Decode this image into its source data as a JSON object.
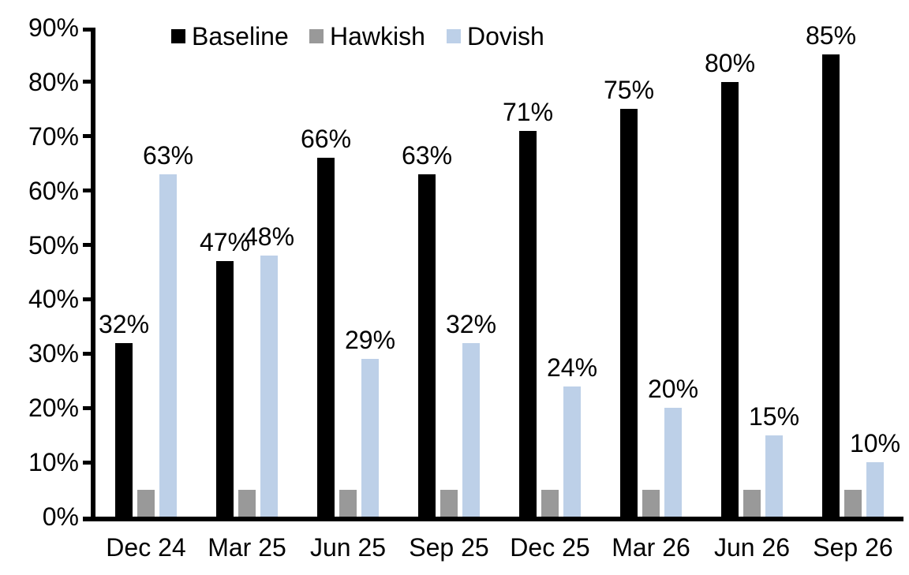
{
  "chart_data": {
    "type": "bar",
    "title": "",
    "xlabel": "",
    "ylabel": "",
    "categories": [
      "Dec 24",
      "Mar 25",
      "Jun 25",
      "Sep 25",
      "Dec 25",
      "Mar 26",
      "Jun 26",
      "Sep 26"
    ],
    "series": [
      {
        "name": "Baseline",
        "color": "#000000",
        "values": [
          32,
          47,
          66,
          63,
          71,
          75,
          80,
          85
        ],
        "data_labels": [
          "32%",
          "47%",
          "66%",
          "63%",
          "71%",
          "75%",
          "80%",
          "85%"
        ]
      },
      {
        "name": "Hawkish",
        "color": "#999999",
        "values": [
          5,
          5,
          5,
          5,
          5,
          5,
          5,
          5
        ],
        "data_labels": [
          "",
          "",
          "",
          "",
          "",
          "",
          "",
          ""
        ]
      },
      {
        "name": "Dovish",
        "color": "#BDD0E8",
        "values": [
          63,
          48,
          29,
          32,
          24,
          20,
          15,
          10
        ],
        "data_labels": [
          "63%",
          "48%",
          "29%",
          "32%",
          "24%",
          "20%",
          "15%",
          "10%"
        ]
      }
    ],
    "ylim": [
      0,
      90
    ],
    "ytick_labels": [
      "0%",
      "10%",
      "20%",
      "30%",
      "40%",
      "50%",
      "60%",
      "70%",
      "80%",
      "90%"
    ],
    "grid": false,
    "legend_position": "top",
    "axis_color": "#000000",
    "background_color": "#FFFFFF"
  }
}
